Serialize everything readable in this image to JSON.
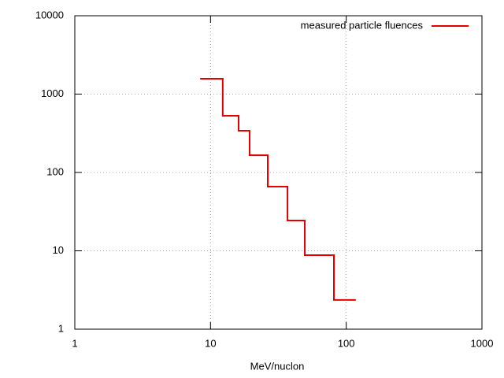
{
  "chart_data": {
    "type": "histogram",
    "xlabel": "MeV/nuclon",
    "bins": [
      8.5,
      12.3,
      16.1,
      19.4,
      26.4,
      36.9,
      49.5,
      81.1,
      116
    ],
    "series": [
      {
        "name": "measured particle fluences",
        "color": "#e00000",
        "values": [
          1570,
          529,
          341,
          166,
          66,
          24.4,
          8.8,
          2.36
        ]
      }
    ],
    "xlim": [
      1,
      1000
    ],
    "xticks": [
      1,
      10,
      100,
      1000
    ],
    "ylim": [
      1,
      10000
    ],
    "yticks": [
      1,
      10,
      100,
      1000,
      10000
    ],
    "xlog": true,
    "ylog": true,
    "grid": true,
    "legend": "top-right"
  }
}
